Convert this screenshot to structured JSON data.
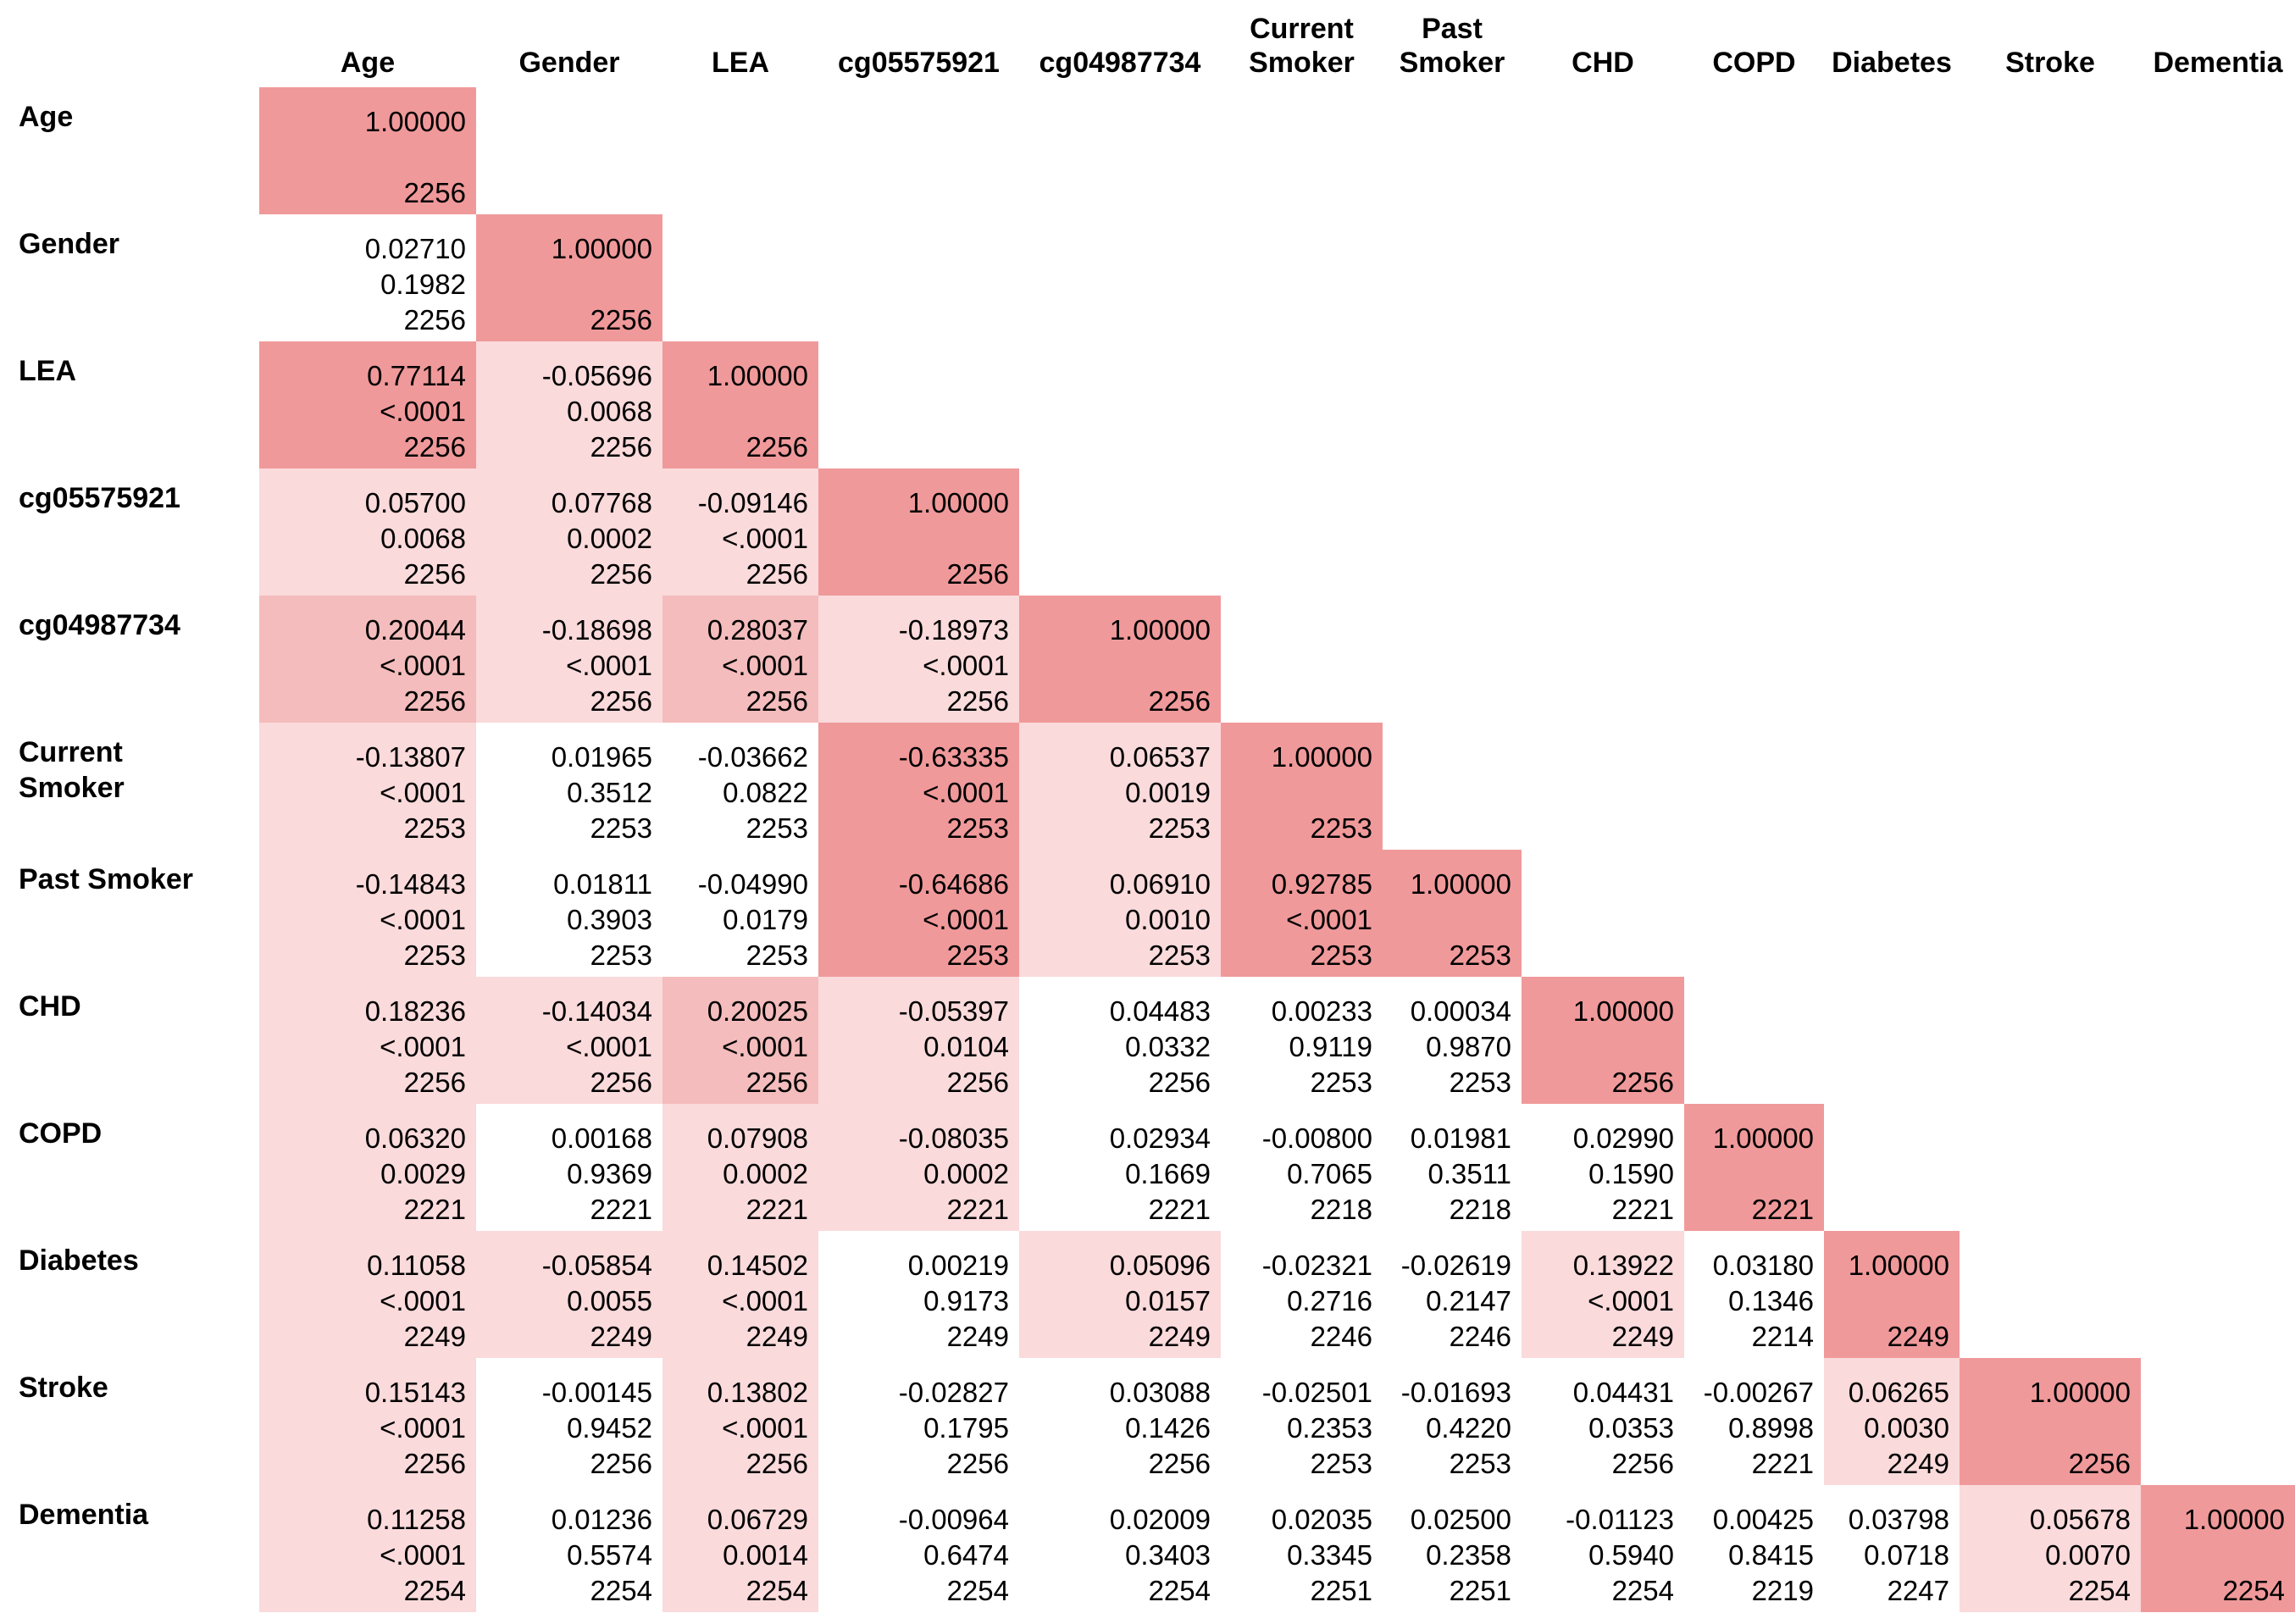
{
  "chart_data": {
    "type": "table",
    "title": "",
    "variables": [
      "Age",
      "Gender",
      "LEA",
      "cg05575921",
      "cg04987734",
      "Current Smoker",
      "Past Smoker",
      "CHD",
      "COPD",
      "Diabetes",
      "Stroke",
      "Dementia"
    ],
    "column_labels": [
      "Age",
      "Gender",
      "LEA",
      "cg05575921",
      "cg04987734",
      "Current\nSmoker",
      "Past\nSmoker",
      "CHD",
      "COPD",
      "Diabetes",
      "Stroke",
      "Dementia"
    ],
    "row_labels": [
      "Age",
      "Gender",
      "LEA",
      "cg05575921",
      "cg04987734",
      "Current\nSmoker",
      "Past Smoker",
      "CHD",
      "COPD",
      "Diabetes",
      "Stroke",
      "Dementia"
    ],
    "colors": {
      "strong": "#f0999a",
      "moderate": "#f4bcbc",
      "weak": "#fadadb",
      "none": "#ffffff"
    },
    "rows": [
      [
        [
          "1.00000",
          "",
          "2256",
          "strong"
        ]
      ],
      [
        [
          "0.02710",
          "0.1982",
          "2256",
          "none"
        ],
        [
          "1.00000",
          "",
          "2256",
          "strong"
        ]
      ],
      [
        [
          "0.77114",
          "<.0001",
          "2256",
          "strong"
        ],
        [
          "-0.05696",
          "0.0068",
          "2256",
          "weak"
        ],
        [
          "1.00000",
          "",
          "2256",
          "strong"
        ]
      ],
      [
        [
          "0.05700",
          "0.0068",
          "2256",
          "weak"
        ],
        [
          "0.07768",
          "0.0002",
          "2256",
          "weak"
        ],
        [
          "-0.09146",
          "<.0001",
          "2256",
          "weak"
        ],
        [
          "1.00000",
          "",
          "2256",
          "strong"
        ]
      ],
      [
        [
          "0.20044",
          "<.0001",
          "2256",
          "moderate"
        ],
        [
          "-0.18698",
          "<.0001",
          "2256",
          "weak"
        ],
        [
          "0.28037",
          "<.0001",
          "2256",
          "moderate"
        ],
        [
          "-0.18973",
          "<.0001",
          "2256",
          "weak"
        ],
        [
          "1.00000",
          "",
          "2256",
          "strong"
        ]
      ],
      [
        [
          "-0.13807",
          "<.0001",
          "2253",
          "weak"
        ],
        [
          "0.01965",
          "0.3512",
          "2253",
          "none"
        ],
        [
          "-0.03662",
          "0.0822",
          "2253",
          "none"
        ],
        [
          "-0.63335",
          "<.0001",
          "2253",
          "strong"
        ],
        [
          "0.06537",
          "0.0019",
          "2253",
          "weak"
        ],
        [
          "1.00000",
          "",
          "2253",
          "strong"
        ]
      ],
      [
        [
          "-0.14843",
          "<.0001",
          "2253",
          "weak"
        ],
        [
          "0.01811",
          "0.3903",
          "2253",
          "none"
        ],
        [
          "-0.04990",
          "0.0179",
          "2253",
          "none"
        ],
        [
          "-0.64686",
          "<.0001",
          "2253",
          "strong"
        ],
        [
          "0.06910",
          "0.0010",
          "2253",
          "weak"
        ],
        [
          "0.92785",
          "<.0001",
          "2253",
          "strong"
        ],
        [
          "1.00000",
          "",
          "2253",
          "strong"
        ]
      ],
      [
        [
          "0.18236",
          "<.0001",
          "2256",
          "weak"
        ],
        [
          "-0.14034",
          "<.0001",
          "2256",
          "weak"
        ],
        [
          "0.20025",
          "<.0001",
          "2256",
          "moderate"
        ],
        [
          "-0.05397",
          "0.0104",
          "2256",
          "weak"
        ],
        [
          "0.04483",
          "0.0332",
          "2256",
          "none"
        ],
        [
          "0.00233",
          "0.9119",
          "2253",
          "none"
        ],
        [
          "0.00034",
          "0.9870",
          "2253",
          "none"
        ],
        [
          "1.00000",
          "",
          "2256",
          "strong"
        ]
      ],
      [
        [
          "0.06320",
          "0.0029",
          "2221",
          "weak"
        ],
        [
          "0.00168",
          "0.9369",
          "2221",
          "none"
        ],
        [
          "0.07908",
          "0.0002",
          "2221",
          "weak"
        ],
        [
          "-0.08035",
          "0.0002",
          "2221",
          "weak"
        ],
        [
          "0.02934",
          "0.1669",
          "2221",
          "none"
        ],
        [
          "-0.00800",
          "0.7065",
          "2218",
          "none"
        ],
        [
          "0.01981",
          "0.3511",
          "2218",
          "none"
        ],
        [
          "0.02990",
          "0.1590",
          "2221",
          "none"
        ],
        [
          "1.00000",
          "",
          "2221",
          "strong"
        ]
      ],
      [
        [
          "0.11058",
          "<.0001",
          "2249",
          "weak"
        ],
        [
          "-0.05854",
          "0.0055",
          "2249",
          "weak"
        ],
        [
          "0.14502",
          "<.0001",
          "2249",
          "weak"
        ],
        [
          "0.00219",
          "0.9173",
          "2249",
          "none"
        ],
        [
          "0.05096",
          "0.0157",
          "2249",
          "weak"
        ],
        [
          "-0.02321",
          "0.2716",
          "2246",
          "none"
        ],
        [
          "-0.02619",
          "0.2147",
          "2246",
          "none"
        ],
        [
          "0.13922",
          "<.0001",
          "2249",
          "weak"
        ],
        [
          "0.03180",
          "0.1346",
          "2214",
          "none"
        ],
        [
          "1.00000",
          "",
          "2249",
          "strong"
        ]
      ],
      [
        [
          "0.15143",
          "<.0001",
          "2256",
          "weak"
        ],
        [
          "-0.00145",
          "0.9452",
          "2256",
          "none"
        ],
        [
          "0.13802",
          "<.0001",
          "2256",
          "weak"
        ],
        [
          "-0.02827",
          "0.1795",
          "2256",
          "none"
        ],
        [
          "0.03088",
          "0.1426",
          "2256",
          "none"
        ],
        [
          "-0.02501",
          "0.2353",
          "2253",
          "none"
        ],
        [
          "-0.01693",
          "0.4220",
          "2253",
          "none"
        ],
        [
          "0.04431",
          "0.0353",
          "2256",
          "none"
        ],
        [
          "-0.00267",
          "0.8998",
          "2221",
          "none"
        ],
        [
          "0.06265",
          "0.0030",
          "2249",
          "weak"
        ],
        [
          "1.00000",
          "",
          "2256",
          "strong"
        ]
      ],
      [
        [
          "0.11258",
          "<.0001",
          "2254",
          "weak"
        ],
        [
          "0.01236",
          "0.5574",
          "2254",
          "none"
        ],
        [
          "0.06729",
          "0.0014",
          "2254",
          "weak"
        ],
        [
          "-0.00964",
          "0.6474",
          "2254",
          "none"
        ],
        [
          "0.02009",
          "0.3403",
          "2254",
          "none"
        ],
        [
          "0.02035",
          "0.3345",
          "2251",
          "none"
        ],
        [
          "0.02500",
          "0.2358",
          "2251",
          "none"
        ],
        [
          "-0.01123",
          "0.5940",
          "2254",
          "none"
        ],
        [
          "0.00425",
          "0.8415",
          "2219",
          "none"
        ],
        [
          "0.03798",
          "0.0718",
          "2247",
          "none"
        ],
        [
          "0.05678",
          "0.0070",
          "2254",
          "weak"
        ],
        [
          "1.00000",
          "",
          "2254",
          "strong"
        ]
      ]
    ]
  }
}
